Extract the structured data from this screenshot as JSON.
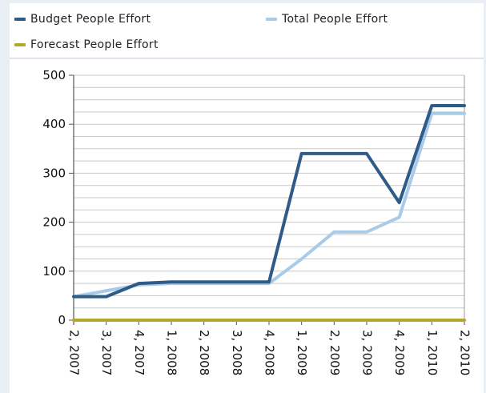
{
  "chart_data": {
    "type": "line",
    "categories": [
      "2, 2007",
      "3, 2007",
      "4, 2007",
      "1, 2008",
      "2, 2008",
      "3, 2008",
      "4, 2008",
      "1, 2009",
      "2, 2009",
      "3, 2009",
      "4, 2009",
      "1, 2010",
      "2, 2010"
    ],
    "series": [
      {
        "name": "Budget People Effort",
        "color": "#2e5b87",
        "values": [
          48,
          48,
          75,
          78,
          78,
          78,
          78,
          340,
          340,
          340,
          240,
          438,
          438
        ]
      },
      {
        "name": "Total People Effort",
        "color": "#a9cbe8",
        "values": [
          48,
          60,
          72,
          75,
          75,
          75,
          75,
          125,
          180,
          180,
          210,
          422,
          422
        ]
      },
      {
        "name": "Forecast People Effort",
        "color": "#b5a72e",
        "values": [
          0,
          0,
          0,
          0,
          0,
          0,
          0,
          0,
          0,
          0,
          0,
          0,
          0
        ]
      }
    ],
    "yticks": [
      "0",
      "100",
      "200",
      "300",
      "400",
      "500"
    ],
    "ylim": [
      0,
      500
    ],
    "grid": true,
    "legend_position": "top-left",
    "title": "",
    "xlabel": "",
    "ylabel": ""
  }
}
